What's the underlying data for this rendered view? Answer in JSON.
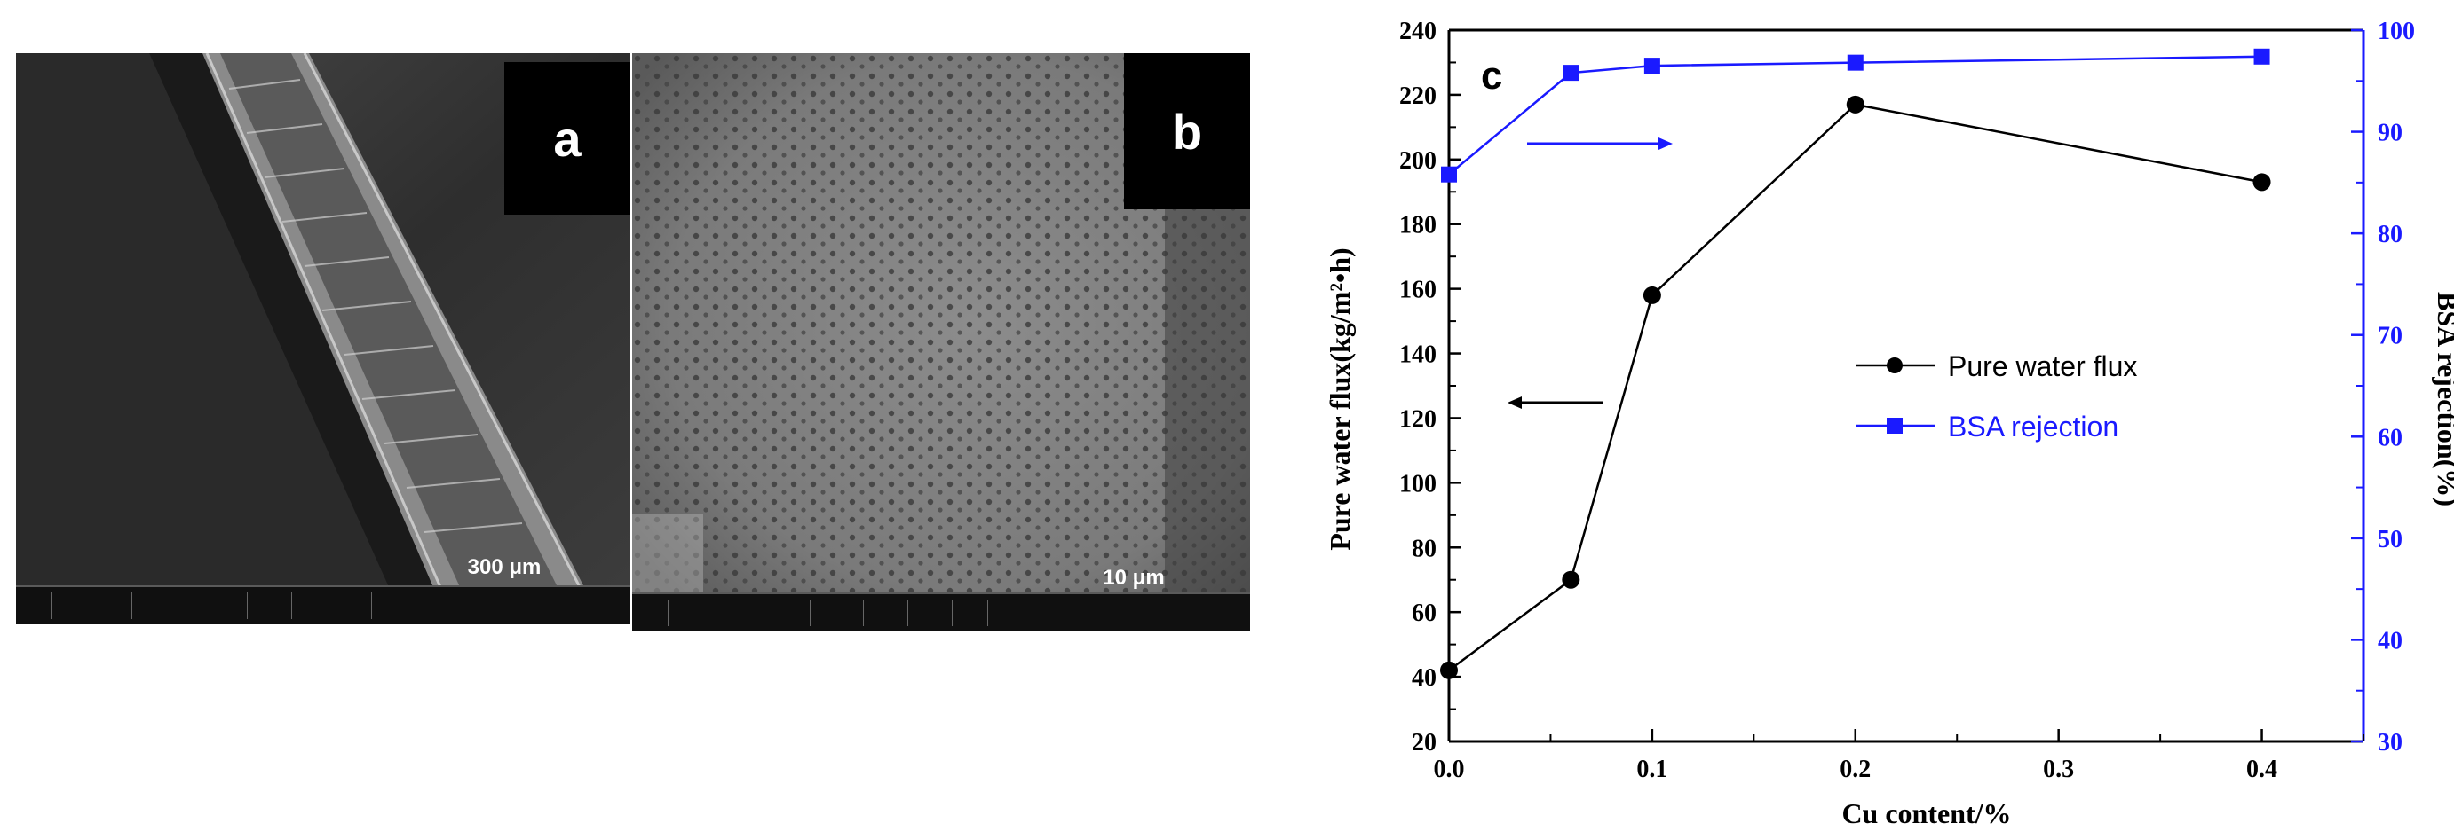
{
  "panels": {
    "a": {
      "label": "a",
      "scale_text": "300 μm"
    },
    "b": {
      "label": "b",
      "scale_text": "10 μm"
    }
  },
  "chart_data": {
    "type": "line",
    "panel_label": "c",
    "xlabel": "Cu content/%",
    "ylabel_left": "Pure water flux(kg/m²•h)",
    "ylabel_right": "BSA rejection(%)",
    "xlim": [
      0.0,
      0.45
    ],
    "ylim_left": [
      20,
      240
    ],
    "ylim_right": [
      30,
      100
    ],
    "x_ticks": [
      "0.0",
      "0.1",
      "0.2",
      "0.3",
      "0.4"
    ],
    "y_left_ticks": [
      "20",
      "40",
      "60",
      "80",
      "100",
      "120",
      "140",
      "160",
      "180",
      "200",
      "220",
      "240"
    ],
    "y_right_ticks": [
      "30",
      "40",
      "50",
      "60",
      "70",
      "80",
      "90",
      "100"
    ],
    "grid": false,
    "legend_position": "center-right",
    "series": [
      {
        "name": "Pure water flux",
        "axis": "left",
        "marker": "circle",
        "color": "#000000",
        "x": [
          0.0,
          0.06,
          0.1,
          0.2,
          0.4
        ],
        "values": [
          42,
          70,
          158,
          217,
          193
        ]
      },
      {
        "name": "BSA rejection",
        "axis": "right",
        "marker": "square",
        "color": "#1a1aff",
        "x": [
          0.0,
          0.06,
          0.1,
          0.2,
          0.4
        ],
        "values": [
          85.8,
          95.8,
          96.5,
          96.8,
          97.4
        ]
      }
    ]
  }
}
